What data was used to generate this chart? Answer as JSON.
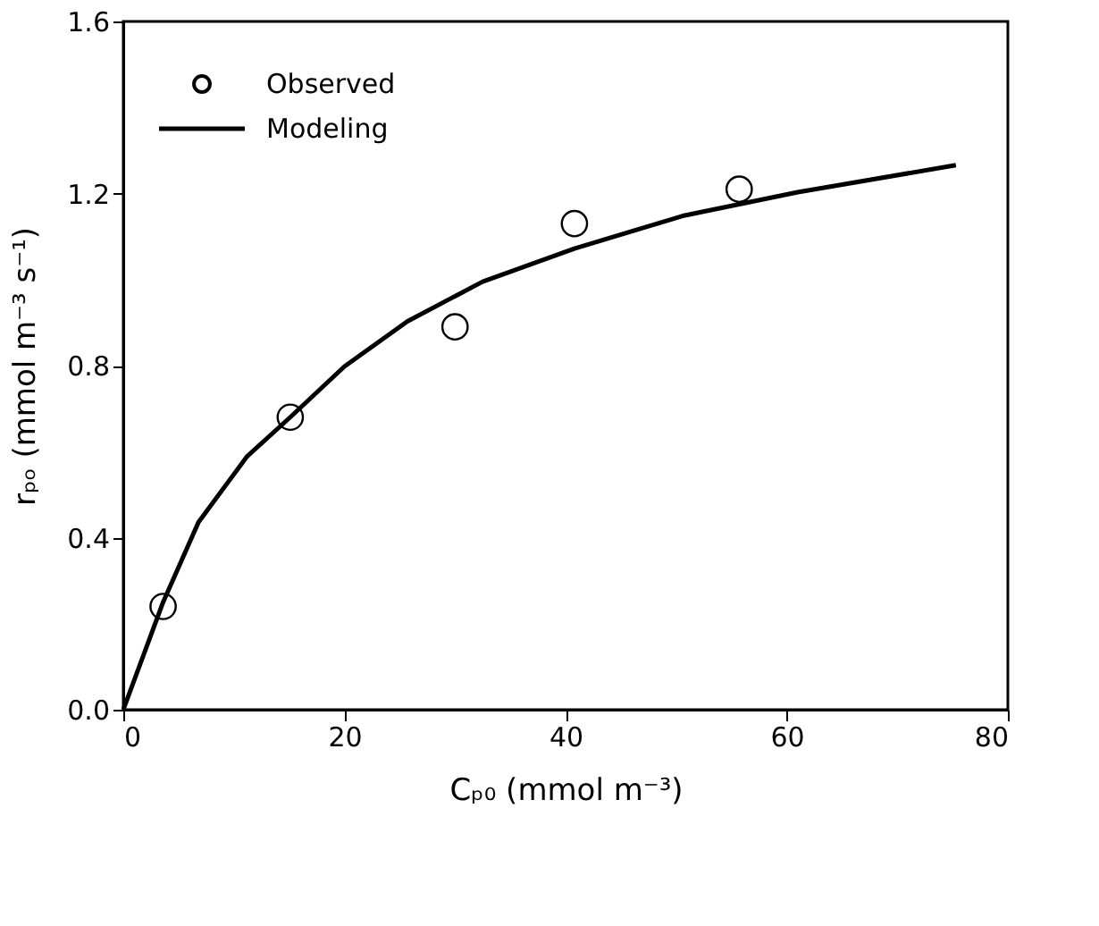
{
  "chart_data": {
    "type": "scatter",
    "xlabel": "Cₚ₀ (mmol m⁻³)",
    "ylabel": "rₚₒ (mmol m⁻³ s⁻¹)",
    "xlim": [
      0,
      80
    ],
    "xticks": [
      0,
      20,
      40,
      60,
      80
    ],
    "ylim": [
      0,
      1.6
    ],
    "yticks": [
      {
        "value": 0,
        "label": "0.0"
      },
      {
        "value": 0.4,
        "label": "0.4"
      },
      {
        "value": 0.8,
        "label": "0.8"
      },
      {
        "value": 1.2,
        "label": "1.2"
      },
      {
        "value": 1.6,
        "label": "1.6"
      }
    ],
    "grid": false,
    "legend": "top left",
    "series": [
      {
        "name": "Observed",
        "marker": "circle",
        "color": "#000000",
        "x": [
          3.6,
          15.1,
          30.0,
          40.8,
          55.7
        ],
        "values": [
          0.24,
          0.68,
          0.89,
          1.13,
          1.21
        ]
      },
      {
        "name": "Modeling",
        "type": "line",
        "line_style": "solid",
        "color": "#000000",
        "x": [
          0,
          3.6,
          6.8,
          11.2,
          15.1,
          20,
          25.7,
          32.5,
          40.8,
          50.6,
          61,
          75.3
        ],
        "values": [
          0,
          0.25,
          0.436,
          0.589,
          0.68,
          0.798,
          0.903,
          0.995,
          1.072,
          1.148,
          1.203,
          1.266
        ]
      }
    ]
  }
}
